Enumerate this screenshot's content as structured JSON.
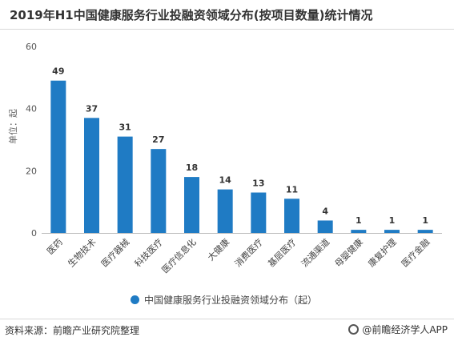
{
  "title": "2019年H1中国健康服务行业投融资领域分布(按项目数量)统计情况",
  "source": "资料来源：前瞻产业研究院整理",
  "credit": "@前瞻经济学人APP",
  "colors": {
    "bar": "#1f7bc4",
    "axis": "#bbbbbb",
    "label": "#333333"
  },
  "chart_data": {
    "type": "bar",
    "categories": [
      "医药",
      "生物技术",
      "医疗器械",
      "科技医疗",
      "医疗信息化",
      "大健康",
      "消费医疗",
      "基层医疗",
      "流通渠道",
      "母婴健康",
      "康复护理",
      "医疗金融"
    ],
    "series": [
      {
        "name": "中国健康服务行业投融资领域分布（起）",
        "values": [
          49,
          37,
          31,
          27,
          18,
          14,
          13,
          11,
          4,
          1,
          1,
          1
        ]
      }
    ],
    "ylabel": "单位：起",
    "ylim": [
      0,
      60
    ],
    "yticks": [
      0,
      20,
      40,
      60
    ],
    "legend": "bottom"
  }
}
